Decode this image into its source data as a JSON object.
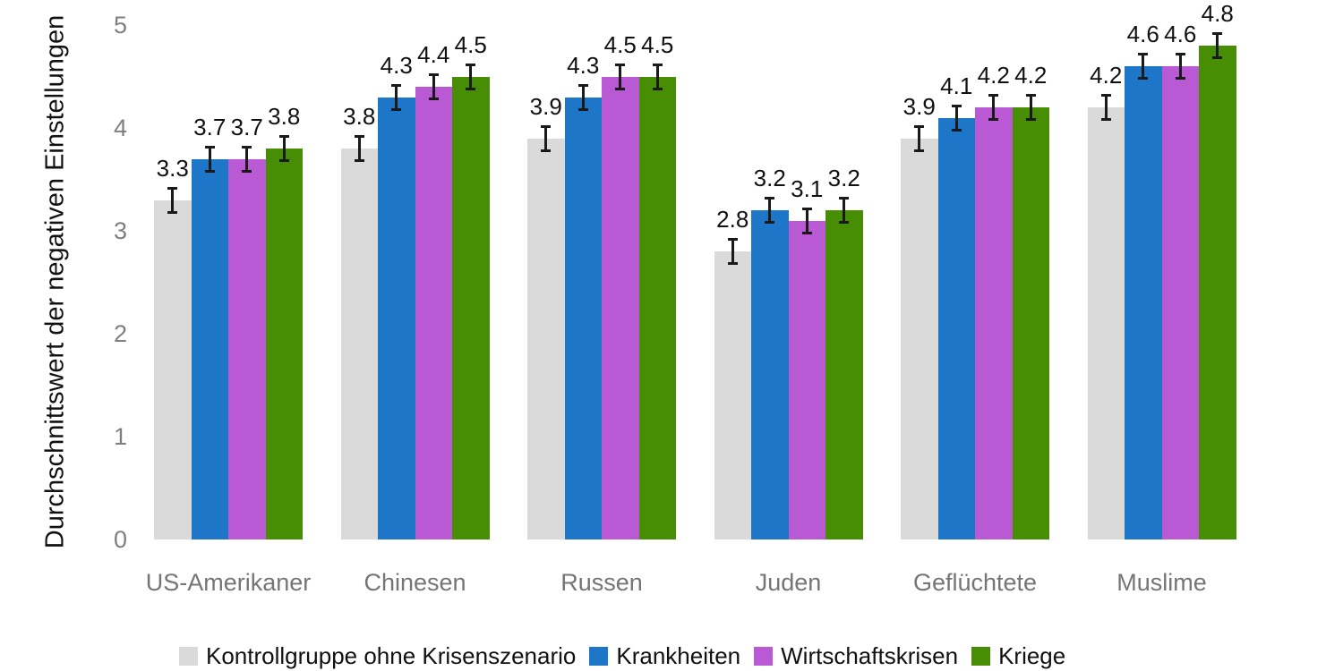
{
  "chart_data": {
    "type": "bar",
    "title": "",
    "ylabel": "Durchschnittswert der negativen Einstellungen",
    "xlabel": "",
    "ylim": [
      0,
      5
    ],
    "yticks": [
      0,
      1,
      2,
      3,
      4,
      5
    ],
    "grid": false,
    "legend_position": "bottom",
    "value_label_decimals": 1,
    "error_bar_half": 0.13,
    "categories": [
      "US-Amerikaner",
      "Chinesen",
      "Russen",
      "Juden",
      "Geflüchtete",
      "Muslime"
    ],
    "series": [
      {
        "name": "Kontrollgruppe ohne Krisenszenario",
        "color": "#DADADA",
        "values": [
          3.3,
          3.8,
          3.9,
          2.8,
          3.9,
          4.2
        ]
      },
      {
        "name": "Krankheiten",
        "color": "#1E76C8",
        "values": [
          3.7,
          4.3,
          4.3,
          3.2,
          4.1,
          4.6
        ]
      },
      {
        "name": "Wirtschaftskrisen",
        "color": "#B95AD4",
        "values": [
          3.7,
          4.4,
          4.5,
          3.1,
          4.2,
          4.6
        ]
      },
      {
        "name": "Kriege",
        "color": "#488E04",
        "values": [
          3.8,
          4.5,
          4.5,
          3.2,
          4.2,
          4.8
        ]
      }
    ],
    "colors": {
      "axis_tick_text": "#7F7F7F",
      "category_text": "#757575",
      "value_label_text": "#111111",
      "error_bar": "#1A1A1A",
      "background": "#FFFFFF"
    }
  }
}
